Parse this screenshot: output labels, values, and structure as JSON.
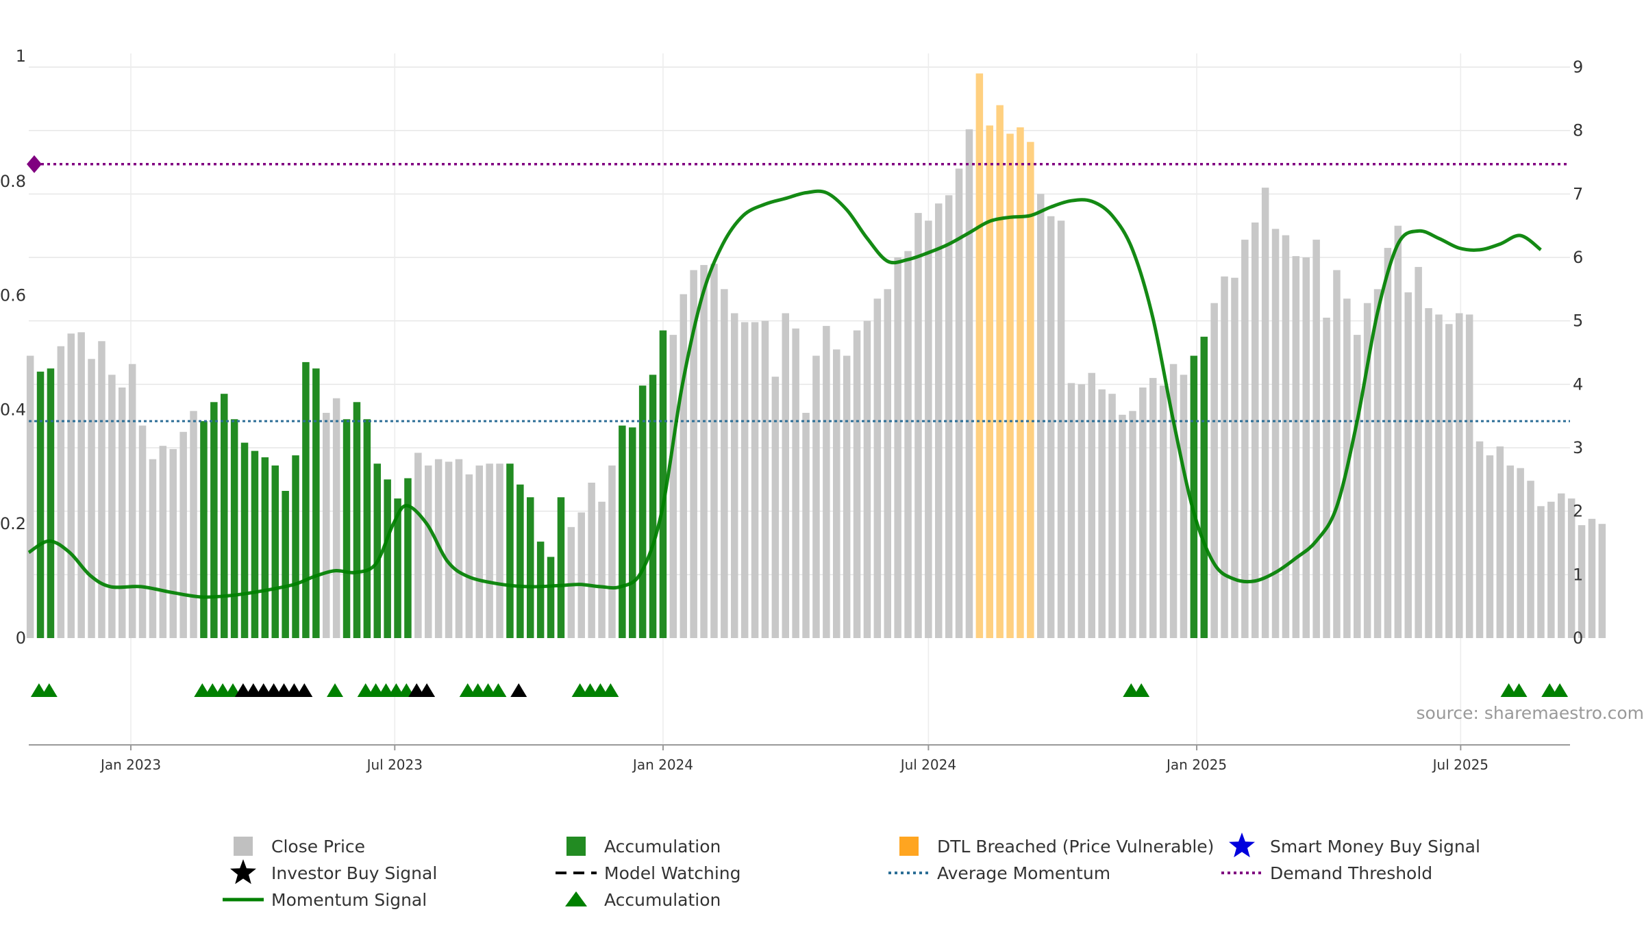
{
  "chart_data": {
    "type": "bar",
    "source": "source: sharemaestro.com",
    "left_axis": {
      "min": 0,
      "max": 1,
      "ticks": [
        "0",
        "0.2",
        "0.4",
        "0.6",
        "0.8",
        "1"
      ],
      "tick_values": [
        0,
        0.2,
        0.4,
        0.6,
        0.8,
        1
      ]
    },
    "right_axis": {
      "min": 0,
      "max": 9,
      "ticks": [
        "0",
        "1",
        "2",
        "3",
        "4",
        "5",
        "6",
        "7",
        "8",
        "9"
      ],
      "tick_values": [
        0,
        1,
        2,
        3,
        4,
        5,
        6,
        7,
        8,
        9
      ]
    },
    "x_axis": {
      "start": "2022-10-23",
      "end": "2025-09-14",
      "ticks": [
        {
          "label": "Jan 2023",
          "date": "2023-01-01"
        },
        {
          "label": "Jul 2023",
          "date": "2023-07-01"
        },
        {
          "label": "Jan 2024",
          "date": "2024-01-01"
        },
        {
          "label": "Jul 2024",
          "date": "2024-07-01"
        },
        {
          "label": "Jan 2025",
          "date": "2025-01-01"
        },
        {
          "label": "Jul 2025",
          "date": "2025-07-01"
        }
      ]
    },
    "bar_series": {
      "name": "Close Price",
      "start": "2022-10-24",
      "dates_step": "weekly",
      "values": [
        4.45,
        4.2,
        4.25,
        4.6,
        4.8,
        4.82,
        4.4,
        4.68,
        4.15,
        3.95,
        4.32,
        3.35,
        2.82,
        3.03,
        2.98,
        3.25,
        3.58,
        3.42,
        3.72,
        3.85,
        3.45,
        3.08,
        2.95,
        2.85,
        2.72,
        2.32,
        2.88,
        4.35,
        4.25,
        3.55,
        3.78,
        3.45,
        3.72,
        3.45,
        2.75,
        2.5,
        2.2,
        2.52,
        2.92,
        2.72,
        2.82,
        2.78,
        2.82,
        2.58,
        2.72,
        2.75,
        2.75,
        2.75,
        2.42,
        2.22,
        1.52,
        1.28,
        2.22,
        1.75,
        1.98,
        2.45,
        2.15,
        2.72,
        3.35,
        3.32,
        3.98,
        4.15,
        4.85,
        4.78,
        5.42,
        5.8,
        5.88,
        5.9,
        5.5,
        5.12,
        4.98,
        4.98,
        5.0,
        4.12,
        5.12,
        4.88,
        3.55,
        4.45,
        4.92,
        4.55,
        4.45,
        4.85,
        5.0,
        5.35,
        5.5,
        6.0,
        6.1,
        6.7,
        6.58,
        6.85,
        6.98,
        7.4,
        8.02,
        8.9,
        8.08,
        8.4,
        7.95,
        8.05,
        7.82,
        7.0,
        6.65,
        6.58,
        4.02,
        4.0,
        4.18,
        3.92,
        3.85,
        3.52,
        3.58,
        3.95,
        4.1,
        3.98,
        4.32,
        4.15,
        4.45,
        4.75,
        5.28,
        5.7,
        5.68,
        6.28,
        6.55,
        7.1,
        6.45,
        6.35,
        6.02,
        6.0,
        6.28,
        5.05,
        5.8,
        5.35,
        4.78,
        5.28,
        5.5,
        6.15,
        6.5,
        5.45,
        5.85,
        5.2,
        5.1,
        4.95,
        5.12,
        5.1,
        3.1,
        2.88,
        3.02,
        2.72,
        2.68,
        2.48,
        2.08,
        2.15,
        2.28,
        2.2,
        1.78,
        1.88,
        1.8
      ],
      "colors": {
        "close": "#c8c8c8",
        "accumulation": "#228b22",
        "dtl": "#ffd080"
      },
      "accumulation_index": [
        1,
        2,
        17,
        18,
        19,
        20,
        21,
        22,
        23,
        24,
        25,
        26,
        27,
        28,
        31,
        32,
        33,
        34,
        35,
        36,
        37,
        47,
        48,
        49,
        50,
        51,
        52,
        58,
        59,
        60,
        61,
        62,
        114,
        115,
        156,
        157,
        160,
        161
      ],
      "dtl_index": [
        93,
        94,
        95,
        96,
        97,
        98
      ]
    },
    "momentum_signal": {
      "name": "Momentum Signal",
      "color": "#008000",
      "points": [
        [
          "2022-10-23",
          0.15
        ],
        [
          "2022-11-06",
          0.17
        ],
        [
          "2022-11-20",
          0.15
        ],
        [
          "2022-12-04",
          0.11
        ],
        [
          "2022-12-18",
          0.09
        ],
        [
          "2023-01-08",
          0.09
        ],
        [
          "2023-01-29",
          0.08
        ],
        [
          "2023-02-19",
          0.072
        ],
        [
          "2023-03-12",
          0.075
        ],
        [
          "2023-04-02",
          0.083
        ],
        [
          "2023-04-23",
          0.094
        ],
        [
          "2023-05-07",
          0.108
        ],
        [
          "2023-05-21",
          0.118
        ],
        [
          "2023-06-04",
          0.115
        ],
        [
          "2023-06-18",
          0.13
        ],
        [
          "2023-06-30",
          0.2
        ],
        [
          "2023-07-09",
          0.232
        ],
        [
          "2023-07-23",
          0.2
        ],
        [
          "2023-08-06",
          0.135
        ],
        [
          "2023-08-20",
          0.108
        ],
        [
          "2023-09-10",
          0.095
        ],
        [
          "2023-10-01",
          0.09
        ],
        [
          "2023-10-22",
          0.092
        ],
        [
          "2023-11-05",
          0.094
        ],
        [
          "2023-11-19",
          0.09
        ],
        [
          "2023-12-03",
          0.09
        ],
        [
          "2023-12-17",
          0.115
        ],
        [
          "2023-12-31",
          0.22
        ],
        [
          "2024-01-14",
          0.44
        ],
        [
          "2024-01-28",
          0.6
        ],
        [
          "2024-02-11",
          0.69
        ],
        [
          "2024-02-25",
          0.74
        ],
        [
          "2024-03-11",
          0.76
        ],
        [
          "2024-03-25",
          0.77
        ],
        [
          "2024-04-08",
          0.78
        ],
        [
          "2024-04-22",
          0.78
        ],
        [
          "2024-05-06",
          0.75
        ],
        [
          "2024-05-20",
          0.7
        ],
        [
          "2024-06-03",
          0.66
        ],
        [
          "2024-06-17",
          0.663
        ],
        [
          "2024-07-01",
          0.675
        ],
        [
          "2024-07-15",
          0.69
        ],
        [
          "2024-07-29",
          0.71
        ],
        [
          "2024-08-12",
          0.73
        ],
        [
          "2024-08-26",
          0.737
        ],
        [
          "2024-09-09",
          0.74
        ],
        [
          "2024-09-23",
          0.755
        ],
        [
          "2024-10-07",
          0.766
        ],
        [
          "2024-10-21",
          0.765
        ],
        [
          "2024-11-04",
          0.74
        ],
        [
          "2024-11-18",
          0.68
        ],
        [
          "2024-12-02",
          0.56
        ],
        [
          "2024-12-16",
          0.38
        ],
        [
          "2024-12-30",
          0.22
        ],
        [
          "2025-01-13",
          0.13
        ],
        [
          "2025-01-27",
          0.103
        ],
        [
          "2025-02-10",
          0.1
        ],
        [
          "2025-02-24",
          0.115
        ],
        [
          "2025-03-10",
          0.14
        ],
        [
          "2025-03-24",
          0.17
        ],
        [
          "2025-04-07",
          0.23
        ],
        [
          "2025-04-21",
          0.38
        ],
        [
          "2025-05-05",
          0.57
        ],
        [
          "2025-05-19",
          0.69
        ],
        [
          "2025-06-02",
          0.713
        ],
        [
          "2025-06-16",
          0.7
        ],
        [
          "2025-06-30",
          0.683
        ],
        [
          "2025-07-14",
          0.68
        ],
        [
          "2025-07-28",
          0.69
        ],
        [
          "2025-08-11",
          0.705
        ],
        [
          "2025-08-25",
          0.68
        ]
      ]
    },
    "average_momentum": {
      "name": "Average Momentum",
      "value": 0.38,
      "color": "#2c6e96"
    },
    "demand_threshold": {
      "name": "Demand Threshold",
      "value": 0.83,
      "color": "#800080"
    },
    "accumulation_markers": {
      "name": "Accumulation",
      "color": "#008000",
      "dates": [
        "2022-10-30",
        "2022-11-06",
        "2023-02-19",
        "2023-02-26",
        "2023-03-05",
        "2023-03-12",
        "2023-05-21",
        "2023-06-11",
        "2023-06-18",
        "2023-06-25",
        "2023-07-02",
        "2023-07-09",
        "2023-08-20",
        "2023-08-27",
        "2023-09-03",
        "2023-09-10",
        "2023-11-05",
        "2023-11-12",
        "2023-11-19",
        "2023-11-26",
        "2024-11-17",
        "2024-11-24",
        "2025-08-03",
        "2025-08-10",
        "2025-08-31",
        "2025-09-07"
      ]
    },
    "investor_buy_markers": {
      "name": "Investor Buy Signal",
      "color": "#000000",
      "dates": [
        "2023-03-19",
        "2023-03-26",
        "2023-04-02",
        "2023-04-09",
        "2023-04-16",
        "2023-04-23",
        "2023-04-30",
        "2023-07-16",
        "2023-07-23",
        "2023-09-24"
      ]
    },
    "legend": [
      {
        "key": "close",
        "label": "Close Price",
        "symbol": "square",
        "color": "#c0c0c0"
      },
      {
        "key": "accum_bar",
        "label": "Accumulation",
        "symbol": "square",
        "color": "#228b22"
      },
      {
        "key": "dtl",
        "label": "DTL Breached (Price Vulnerable)",
        "symbol": "square",
        "color": "#ffa520"
      },
      {
        "key": "smart_money",
        "label": "Smart Money Buy Signal",
        "symbol": "star",
        "color": "#0000dd"
      },
      {
        "key": "investor",
        "label": "Investor Buy Signal",
        "symbol": "star",
        "color": "#000000"
      },
      {
        "key": "model_watching",
        "label": "Model Watching",
        "symbol": "dash",
        "color": "#000000"
      },
      {
        "key": "avg_momentum",
        "label": "Average Momentum",
        "symbol": "dotted",
        "color": "#2c6e96"
      },
      {
        "key": "demand",
        "label": "Demand Threshold",
        "symbol": "dotted",
        "color": "#800080"
      },
      {
        "key": "momentum",
        "label": "Momentum Signal",
        "symbol": "line",
        "color": "#008000"
      },
      {
        "key": "accum_tri",
        "label": "Accumulation",
        "symbol": "triangle",
        "color": "#008000"
      }
    ]
  }
}
